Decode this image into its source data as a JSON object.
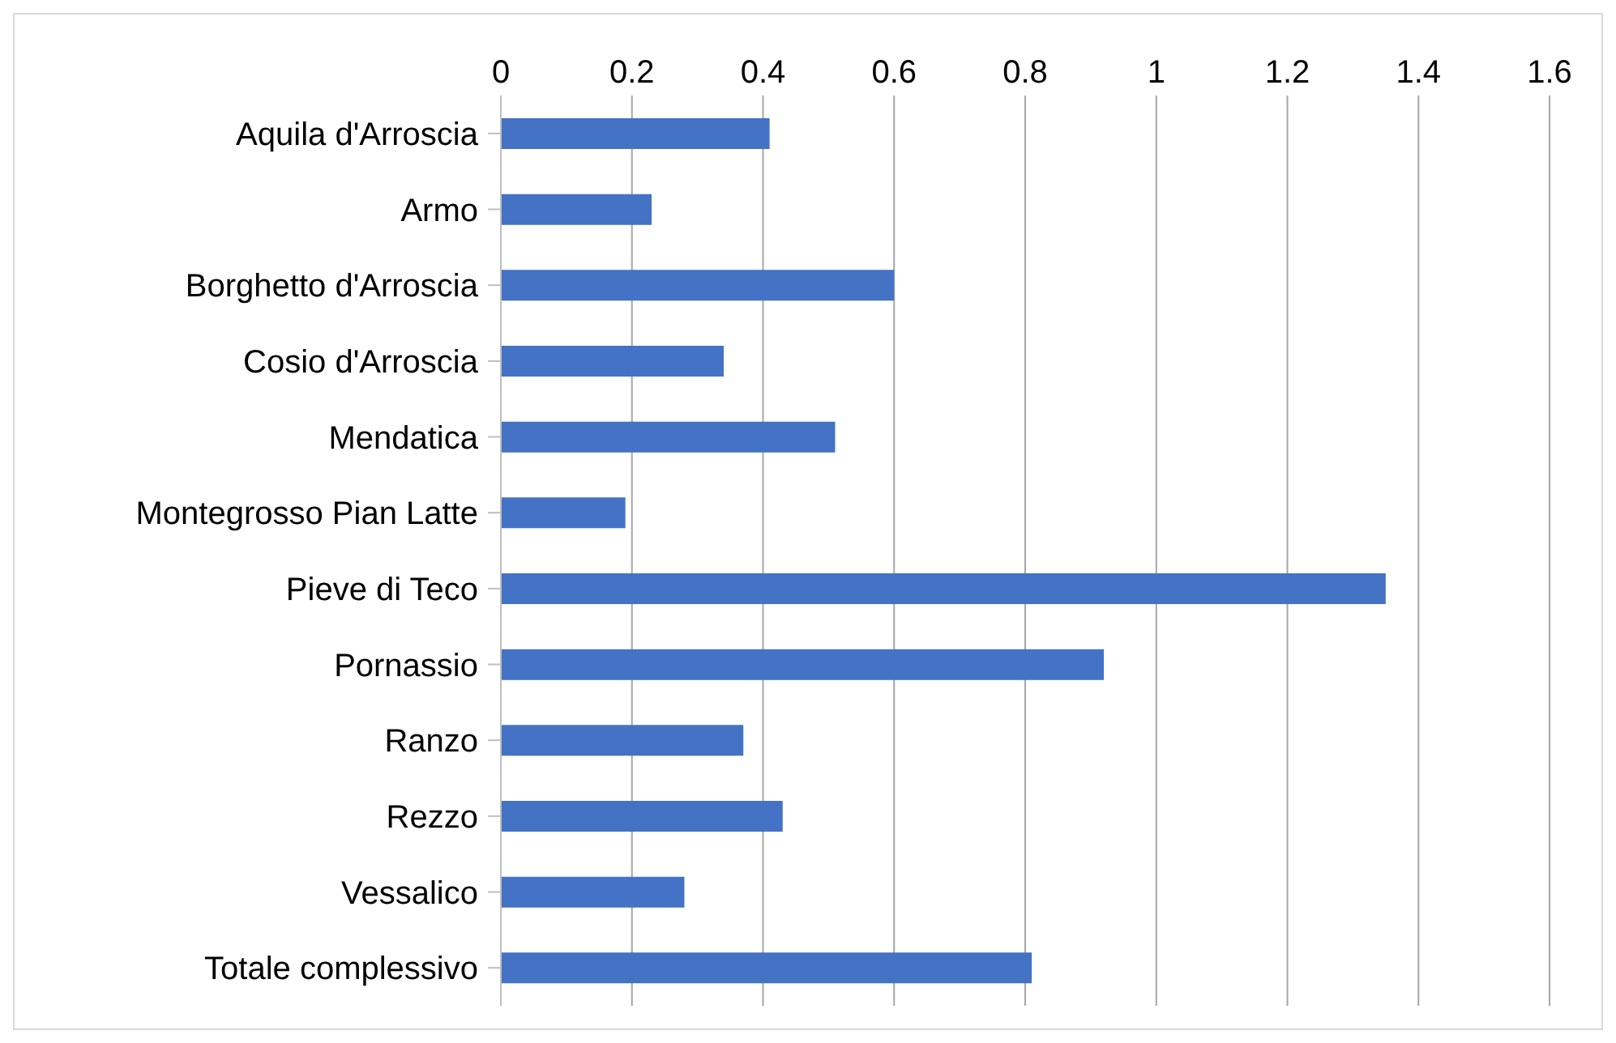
{
  "chart_data": {
    "type": "bar",
    "orientation": "horizontal",
    "categories": [
      "Aquila d'Arroscia",
      "Armo",
      "Borghetto d'Arroscia",
      "Cosio d'Arroscia",
      "Mendatica",
      "Montegrosso Pian Latte",
      "Pieve di Teco",
      "Pornassio",
      "Ranzo",
      "Rezzo",
      "Vessalico",
      "Totale complessivo"
    ],
    "values": [
      0.41,
      0.23,
      0.6,
      0.34,
      0.51,
      0.19,
      1.35,
      0.92,
      0.37,
      0.43,
      0.28,
      0.81
    ],
    "color": "#4472c4",
    "xlim": [
      0,
      1.6
    ],
    "xticks": [
      0,
      0.2,
      0.4,
      0.6,
      0.8,
      1,
      1.2,
      1.4,
      1.6
    ],
    "grid": "x"
  }
}
